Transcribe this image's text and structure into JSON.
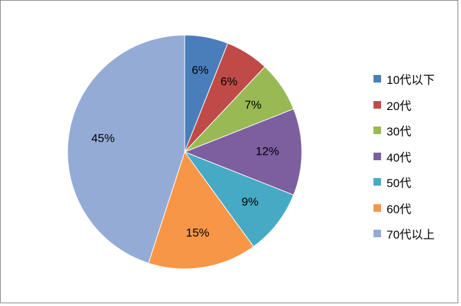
{
  "chart_data": {
    "type": "pie",
    "start_angle_deg": 0,
    "direction": "clockwise",
    "legend_position": "right",
    "slices": [
      {
        "label": "10代以下",
        "value": 6,
        "display": "6%",
        "color": "#4a7ebb"
      },
      {
        "label": "20代",
        "value": 6,
        "display": "6%",
        "color": "#be4b48"
      },
      {
        "label": "30代",
        "value": 7,
        "display": "7%",
        "color": "#98b954"
      },
      {
        "label": "40代",
        "value": 12,
        "display": "12%",
        "color": "#7d5fa0"
      },
      {
        "label": "50代",
        "value": 9,
        "display": "9%",
        "color": "#46aac5"
      },
      {
        "label": "60代",
        "value": 15,
        "display": "15%",
        "color": "#f79646"
      },
      {
        "label": "70代以上",
        "value": 45,
        "display": "45%",
        "color": "#94abd5"
      }
    ]
  }
}
